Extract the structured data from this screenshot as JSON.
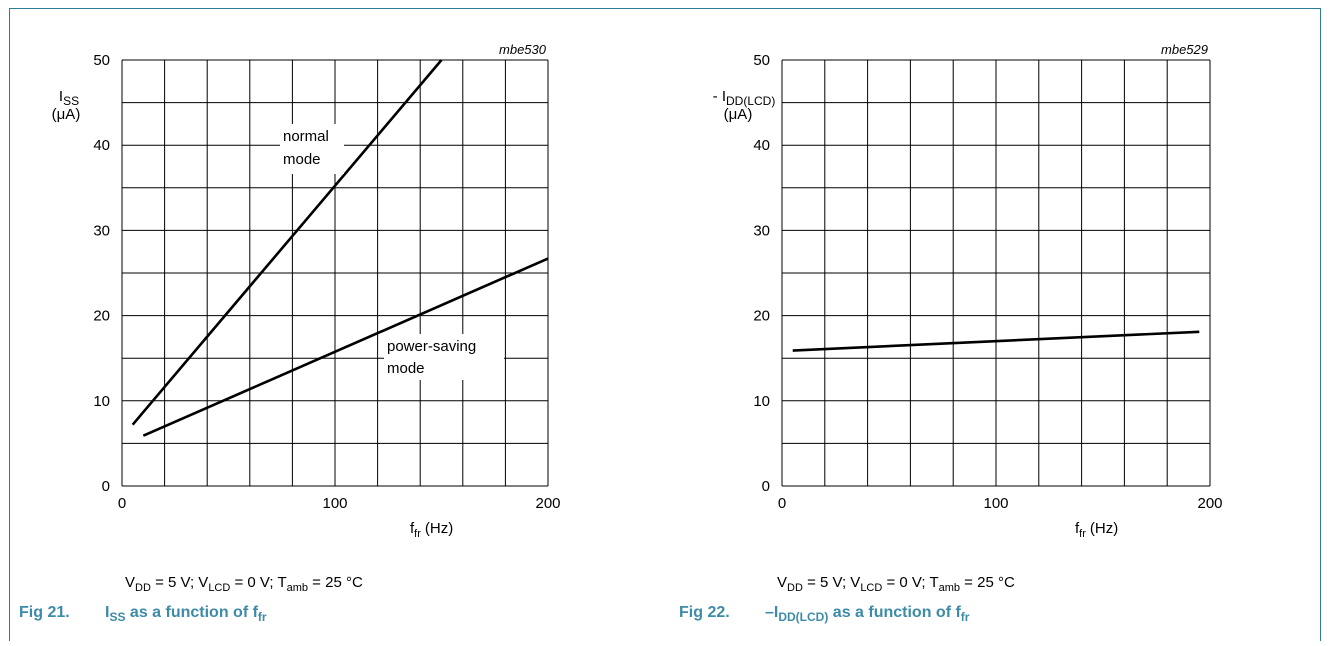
{
  "figures": [
    {
      "code": "mbe530",
      "ylabel_main": "I",
      "ylabel_sub": "SS",
      "yunit": "(μA)",
      "xlabel_main": "f",
      "xlabel_sub": "fr",
      "xunit": "(Hz)",
      "conditions": {
        "vdd": "V",
        "vdd_sub": "DD",
        "vdd_val": " = 5 V; V",
        "vlcd_sub": "LCD",
        "vlcd_val": " = 0 V; T",
        "tamb_sub": "amb",
        "tamb_val": " = 25 °C"
      },
      "caption": {
        "num": "Fig 21.",
        "t1": "I",
        "t1_sub": "SS",
        "t2": " as a function of f",
        "t2_sub": "fr"
      },
      "annotations": [
        {
          "line1": "normal",
          "line2": "mode"
        },
        {
          "line1": "power-saving",
          "line2": "mode"
        }
      ]
    },
    {
      "code": "mbe529",
      "ylabel_main": "- I",
      "ylabel_sub": "DD(LCD)",
      "yunit": "(μA)",
      "xlabel_main": "f",
      "xlabel_sub": "fr",
      "xunit": "(Hz)",
      "conditions": {
        "vdd": "V",
        "vdd_sub": "DD",
        "vdd_val": " = 5 V; V",
        "vlcd_sub": "LCD",
        "vlcd_val": " = 0 V; T",
        "tamb_sub": "amb",
        "tamb_val": " = 25 °C"
      },
      "caption": {
        "num": "Fig 22.",
        "t1": "–I",
        "t1_sub": "DD(LCD)",
        "t2": " as a function of f",
        "t2_sub": "fr"
      },
      "annotations": []
    }
  ],
  "chart_data": [
    {
      "type": "line",
      "xlim": [
        0,
        200
      ],
      "ylim": [
        0,
        50
      ],
      "xticks": [
        0,
        100,
        200
      ],
      "yticks": [
        0,
        10,
        20,
        30,
        40,
        50
      ],
      "xtick_labels": [
        "0",
        "100",
        "200"
      ],
      "ytick_labels": [
        "0",
        "10",
        "20",
        "30",
        "40",
        "50"
      ],
      "x_grid_step": 20,
      "y_grid_step": 5,
      "grid": true,
      "series": [
        {
          "name": "normal mode",
          "x": [
            5,
            150
          ],
          "y": [
            7.2,
            50
          ]
        },
        {
          "name": "power-saving mode",
          "x": [
            10,
            200
          ],
          "y": [
            5.9,
            26.7
          ]
        }
      ]
    },
    {
      "type": "line",
      "xlim": [
        0,
        200
      ],
      "ylim": [
        0,
        50
      ],
      "xticks": [
        0,
        100,
        200
      ],
      "yticks": [
        0,
        10,
        20,
        30,
        40,
        50
      ],
      "xtick_labels": [
        "0",
        "100",
        "200"
      ],
      "ytick_labels": [
        "0",
        "10",
        "20",
        "30",
        "40",
        "50"
      ],
      "x_grid_step": 20,
      "y_grid_step": 5,
      "grid": true,
      "series": [
        {
          "x": [
            5,
            195
          ],
          "y": [
            15.9,
            18.1
          ]
        }
      ]
    }
  ]
}
